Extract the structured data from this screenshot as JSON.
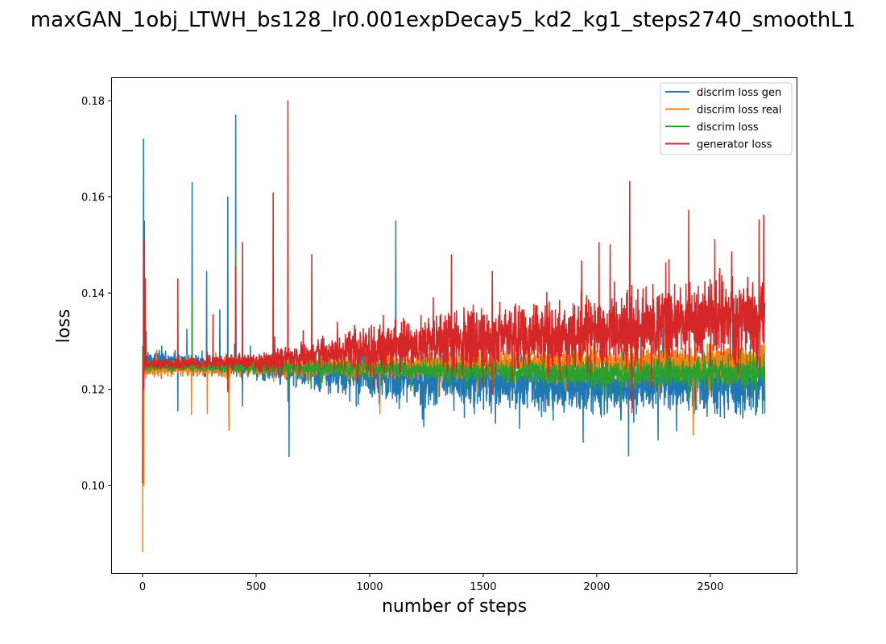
{
  "chart_data": {
    "type": "line",
    "title": "maxGAN_1obj_LTWH_bs128_lr0.001expDecay5_kd2_kg1_steps2740_smoothL1",
    "xlabel": "number of steps",
    "ylabel": "loss",
    "xlim": [
      -135,
      2880
    ],
    "ylim": [
      0.0818,
      0.1847
    ],
    "xticks": [
      0,
      500,
      1000,
      1500,
      2000,
      2500
    ],
    "yticks": [
      0.1,
      0.12,
      0.14,
      0.16,
      0.18
    ],
    "xtick_labels": [
      "0",
      "500",
      "1000",
      "1500",
      "2000",
      "2500"
    ],
    "ytick_labels": [
      "0.10",
      "0.12",
      "0.14",
      "0.16",
      "0.18"
    ],
    "legend_position": "top-right",
    "grid": false,
    "series": [
      {
        "name": "discrim loss gen",
        "color": "#1f77b4",
        "seed": 11,
        "baseline": [
          [
            0,
            0.126
          ],
          [
            500,
            0.1245
          ],
          [
            1000,
            0.123
          ],
          [
            1500,
            0.1215
          ],
          [
            2000,
            0.1205
          ],
          [
            2500,
            0.1215
          ],
          [
            2740,
            0.121
          ]
        ],
        "noise": [
          [
            0,
            0.0015
          ],
          [
            600,
            0.002
          ],
          [
            1100,
            0.004
          ],
          [
            2740,
            0.005
          ]
        ],
        "keypoints": [
          [
            0,
            0.111
          ],
          [
            4,
            0.172
          ],
          [
            8,
            0.155
          ],
          [
            12,
            0.128
          ],
          [
            155,
            0.1155
          ],
          [
            195,
            0.1325
          ],
          [
            218,
            0.163
          ],
          [
            282,
            0.1445
          ],
          [
            340,
            0.1365
          ],
          [
            375,
            0.16
          ],
          [
            410,
            0.177
          ],
          [
            440,
            0.1165
          ],
          [
            605,
            0.121
          ],
          [
            640,
            0.136
          ],
          [
            645,
            0.106
          ],
          [
            1115,
            0.155
          ],
          [
            1940,
            0.109
          ],
          [
            2140,
            0.1062
          ],
          [
            2270,
            0.1095
          ],
          [
            2740,
            0.115
          ]
        ]
      },
      {
        "name": "discrim loss real",
        "color": "#ff7f0e",
        "seed": 23,
        "baseline": [
          [
            0,
            0.1242
          ],
          [
            500,
            0.1248
          ],
          [
            1000,
            0.1248
          ],
          [
            1500,
            0.1255
          ],
          [
            2000,
            0.1255
          ],
          [
            2500,
            0.1258
          ],
          [
            2740,
            0.1255
          ]
        ],
        "noise": [
          [
            0,
            0.0012
          ],
          [
            1000,
            0.0022
          ],
          [
            2740,
            0.003
          ]
        ],
        "keypoints": [
          [
            0,
            0.0862
          ],
          [
            4,
            0.1
          ],
          [
            9,
            0.124
          ],
          [
            215,
            0.1148
          ],
          [
            285,
            0.115
          ],
          [
            380,
            0.1115
          ],
          [
            1045,
            0.115
          ],
          [
            2300,
            0.1345
          ],
          [
            2425,
            0.1105
          ],
          [
            2740,
            0.118
          ]
        ]
      },
      {
        "name": "discrim loss",
        "color": "#2ca02c",
        "seed": 37,
        "baseline": [
          [
            0,
            0.1248
          ],
          [
            500,
            0.1247
          ],
          [
            1000,
            0.1242
          ],
          [
            1500,
            0.1238
          ],
          [
            2000,
            0.1232
          ],
          [
            2500,
            0.1235
          ],
          [
            2740,
            0.1233
          ]
        ],
        "noise": [
          [
            0,
            0.0008
          ],
          [
            1000,
            0.0015
          ],
          [
            2740,
            0.0025
          ]
        ],
        "keypoints": [
          [
            0,
            0.129
          ],
          [
            6,
            0.12
          ],
          [
            218,
            0.1385
          ],
          [
            410,
            0.149
          ],
          [
            640,
            0.1175
          ],
          [
            2740,
            0.117
          ]
        ]
      },
      {
        "name": "generator loss",
        "color": "#d62728",
        "seed": 53,
        "baseline": [
          [
            0,
            0.1252
          ],
          [
            500,
            0.1258
          ],
          [
            800,
            0.1275
          ],
          [
            1100,
            0.129
          ],
          [
            1500,
            0.1305
          ],
          [
            2000,
            0.1315
          ],
          [
            2500,
            0.1345
          ],
          [
            2740,
            0.134
          ]
        ],
        "noise": [
          [
            0,
            0.0008
          ],
          [
            400,
            0.0012
          ],
          [
            800,
            0.0025
          ],
          [
            1200,
            0.0045
          ],
          [
            2000,
            0.006
          ],
          [
            2740,
            0.0075
          ]
        ],
        "keypoints": [
          [
            0,
            0.1005
          ],
          [
            4,
            0.12
          ],
          [
            7,
            0.151
          ],
          [
            11,
            0.143
          ],
          [
            15,
            0.132
          ],
          [
            155,
            0.143
          ],
          [
            310,
            0.1355
          ],
          [
            375,
            0.1195
          ],
          [
            410,
            0.1455
          ],
          [
            440,
            0.1505
          ],
          [
            575,
            0.1608
          ],
          [
            640,
            0.18
          ],
          [
            745,
            0.148
          ],
          [
            1360,
            0.148
          ],
          [
            1540,
            0.1445
          ],
          [
            2010,
            0.1505
          ],
          [
            2145,
            0.1632
          ],
          [
            2160,
            0.132
          ],
          [
            2405,
            0.1572
          ],
          [
            2715,
            0.1552
          ],
          [
            2735,
            0.1562
          ],
          [
            2740,
            0.138
          ]
        ]
      }
    ]
  }
}
